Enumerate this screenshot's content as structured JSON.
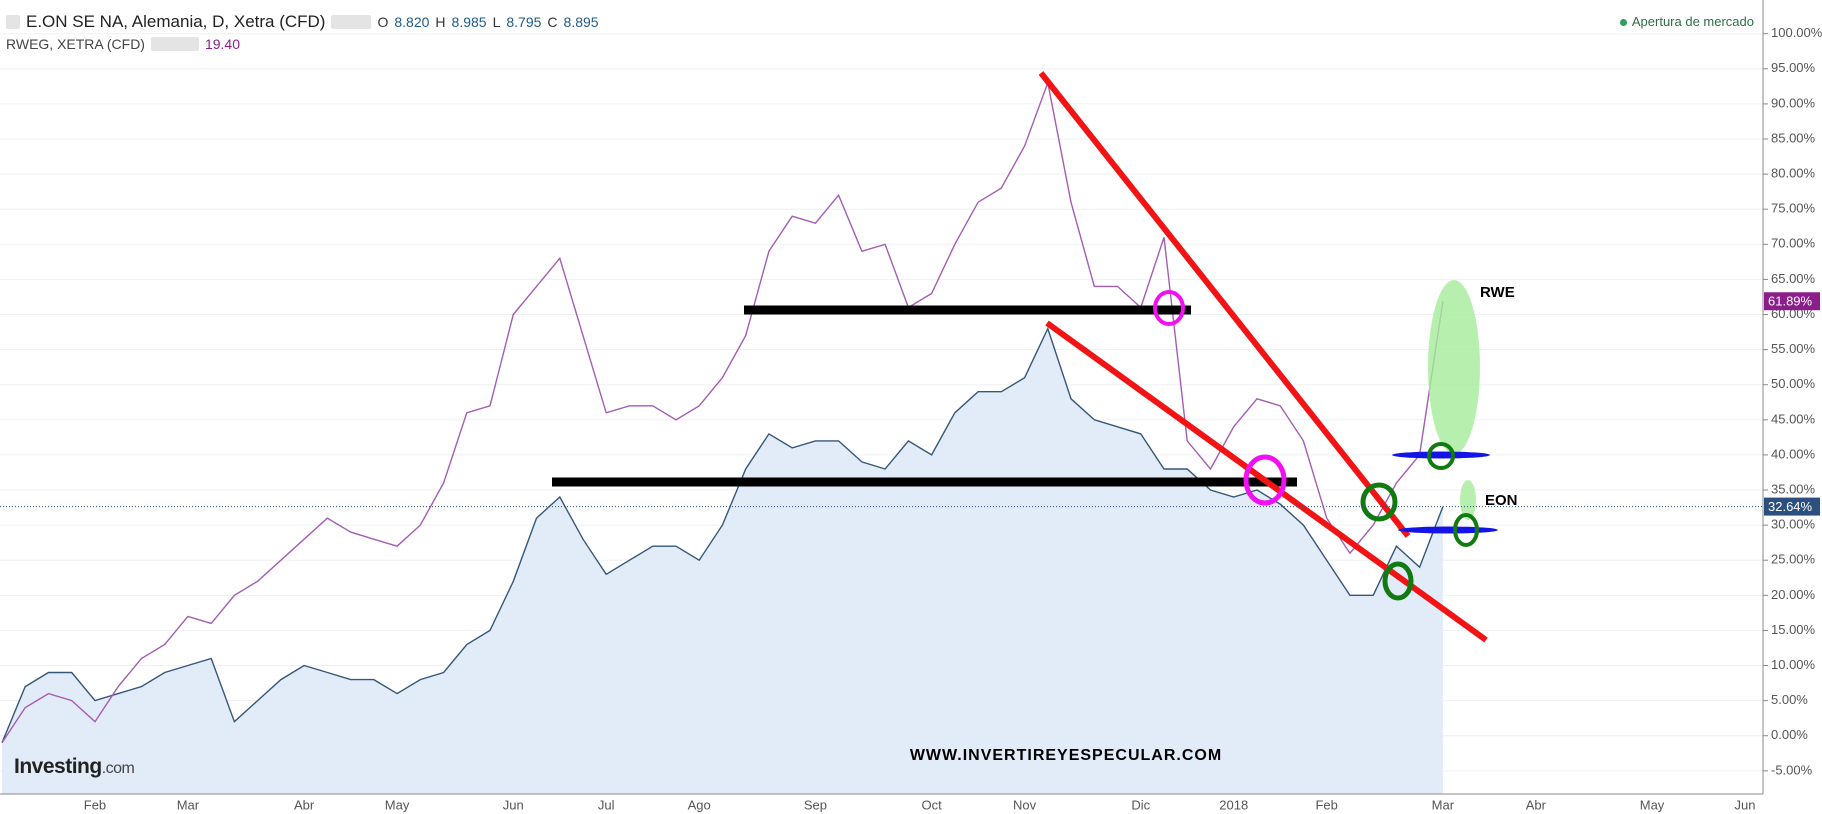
{
  "chart_data": {
    "type": "line",
    "categories": [
      null,
      null,
      null,
      null,
      "Feb",
      null,
      null,
      null,
      "Mar",
      null,
      null,
      null,
      null,
      "Abr",
      null,
      null,
      null,
      "May",
      null,
      null,
      null,
      null,
      "Jun",
      null,
      null,
      null,
      "Jul",
      null,
      null,
      null,
      "Ago",
      null,
      null,
      null,
      null,
      "Sep",
      null,
      null,
      null,
      null,
      "Oct",
      null,
      null,
      null,
      "Nov",
      null,
      null,
      null,
      null,
      "Dic",
      null,
      null,
      null,
      "2018",
      null,
      null,
      null,
      "Feb",
      null,
      null,
      null,
      null,
      "Mar",
      null,
      null,
      null,
      "Abr",
      null,
      null,
      null,
      null,
      "May",
      null,
      null,
      null,
      "Jun"
    ],
    "series": [
      {
        "name": "E.ON SE NA, Alemania, D, Xetra (CFD)",
        "color": "#34577a",
        "area_color": "#e2ecf8",
        "label_color": "#2b4f7e",
        "quote": [
          {
            "key": "O",
            "text": "8.820"
          },
          {
            "key": "H",
            "text": "8.985"
          },
          {
            "key": "L",
            "text": "8.795"
          },
          {
            "key": "C",
            "text": "8.895"
          }
        ],
        "values": [
          -1,
          7,
          9,
          9,
          5,
          6,
          7,
          9,
          10,
          11,
          2,
          5,
          8,
          10,
          9,
          8,
          8,
          6,
          8,
          9,
          13,
          15,
          22,
          31,
          34,
          28,
          23,
          25,
          27,
          27,
          25,
          30,
          38,
          43,
          41,
          42,
          42,
          39,
          38,
          42,
          40,
          46,
          49,
          49,
          51,
          58,
          48,
          45,
          44,
          43,
          38,
          38,
          35,
          34,
          35,
          33,
          30,
          25,
          20,
          20,
          27,
          24,
          32.64,
          null,
          null,
          null,
          null,
          null,
          null,
          null,
          null,
          null,
          null,
          null,
          null,
          null
        ],
        "value_labels": [
          null,
          null,
          null,
          null,
          null,
          null,
          null,
          null,
          null,
          null,
          null,
          null,
          null,
          null,
          null,
          null,
          null,
          null,
          null,
          null,
          null,
          null,
          null,
          null,
          null,
          null,
          null,
          null,
          null,
          null,
          null,
          null,
          null,
          null,
          null,
          null,
          null,
          null,
          null,
          null,
          null,
          null,
          null,
          null,
          null,
          null,
          null,
          null,
          null,
          null,
          null,
          null,
          null,
          null,
          null,
          null,
          null,
          null,
          null,
          null,
          null,
          null,
          "32.64%",
          null,
          null,
          null,
          null,
          null,
          null,
          null,
          null,
          null,
          null,
          null,
          null,
          null
        ]
      },
      {
        "name": "RWEG, XETRA (CFD)",
        "color": "#a35db3",
        "label_color": "#8c1e8c",
        "quote": [
          {
            "key": null,
            "text": "19.40"
          }
        ],
        "values": [
          -1,
          4,
          6,
          5,
          2,
          7,
          11,
          13,
          17,
          16,
          20,
          22,
          25,
          28,
          31,
          29,
          28,
          27,
          30,
          36,
          46,
          47,
          60,
          64,
          68,
          57,
          46,
          47,
          47,
          45,
          47,
          51,
          57,
          69,
          74,
          73,
          77,
          69,
          70,
          61,
          63,
          70,
          76,
          78,
          84,
          93,
          76,
          64,
          64,
          61,
          71,
          42,
          38,
          44,
          48,
          47,
          42,
          31,
          26,
          30,
          36,
          40,
          61.89,
          null,
          null,
          null,
          null,
          null,
          null,
          null,
          null,
          null,
          null,
          null,
          null,
          null
        ],
        "value_labels": [
          null,
          null,
          null,
          null,
          null,
          null,
          null,
          null,
          null,
          null,
          null,
          null,
          null,
          null,
          null,
          null,
          null,
          null,
          null,
          null,
          null,
          null,
          null,
          null,
          null,
          null,
          null,
          null,
          null,
          null,
          null,
          null,
          null,
          null,
          null,
          null,
          null,
          null,
          null,
          null,
          null,
          null,
          null,
          null,
          null,
          null,
          null,
          null,
          null,
          null,
          null,
          null,
          null,
          null,
          null,
          null,
          null,
          null,
          null,
          null,
          null,
          null,
          "61.89%",
          null,
          null,
          null,
          null,
          null,
          null,
          null,
          null,
          null,
          null,
          null,
          null,
          null
        ]
      }
    ],
    "ylim": [
      -8.3,
      104.8
    ],
    "yticks": [
      {
        "value": -5,
        "label": "-5.00%"
      },
      {
        "value": 0,
        "label": "0.00%"
      },
      {
        "value": 5,
        "label": "5.00%"
      },
      {
        "value": 10,
        "label": "10.00%"
      },
      {
        "value": 15,
        "label": "15.00%"
      },
      {
        "value": 20,
        "label": "20.00%"
      },
      {
        "value": 25,
        "label": "25.00%"
      },
      {
        "value": 30,
        "label": "30.00%"
      },
      {
        "value": 35,
        "label": "35.00%"
      },
      {
        "value": 40,
        "label": "40.00%"
      },
      {
        "value": 45,
        "label": "45.00%"
      },
      {
        "value": 50,
        "label": "50.00%"
      },
      {
        "value": 55,
        "label": "55.00%"
      },
      {
        "value": 60,
        "label": "60.00%"
      },
      {
        "value": 65,
        "label": "65.00%"
      },
      {
        "value": 70,
        "label": "70.00%"
      },
      {
        "value": 75,
        "label": "75.00%"
      },
      {
        "value": 80,
        "label": "80.00%"
      },
      {
        "value": 85,
        "label": "85.00%"
      },
      {
        "value": 90,
        "label": "90.00%"
      },
      {
        "value": 95,
        "label": "95.00%"
      },
      {
        "value": 100,
        "label": "100.00%"
      }
    ],
    "grid": true,
    "status": "Apertura de mercado",
    "annotations": {
      "rwe": "RWE",
      "eon": "EON",
      "website": "WWW.INVERTIREYESPECULAR.COM"
    },
    "logo": {
      "main": "Investing",
      "suffix": ".com"
    }
  }
}
